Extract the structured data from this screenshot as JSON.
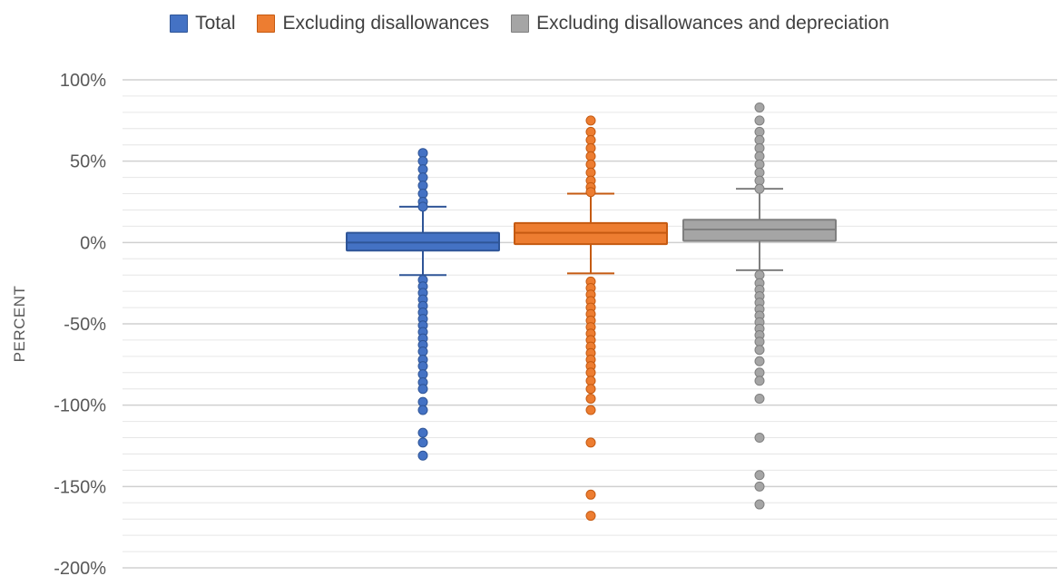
{
  "chart_data": {
    "type": "box",
    "ylabel": "PERCENT",
    "ylim": [
      -200,
      100
    ],
    "yticks": [
      100,
      50,
      0,
      -50,
      -100,
      -150,
      -200
    ],
    "ytick_labels": [
      "100%",
      "50%",
      "0%",
      "-50%",
      "-100%",
      "-150%",
      "-200%"
    ],
    "minor_gridline_step": 10,
    "major_gridline_step": 50,
    "legend_position": "top-center",
    "series": [
      {
        "name": "Total",
        "color": "#4472C4",
        "edge_color": "#2F5597",
        "q1": -5,
        "median": 0,
        "q3": 6,
        "whisker_low": -20,
        "whisker_high": 22,
        "outliers": [
          55,
          50,
          45,
          40,
          35,
          30,
          25,
          22,
          -23,
          -27,
          -31,
          -35,
          -39,
          -43,
          -47,
          -51,
          -55,
          -59,
          -63,
          -67,
          -72,
          -76,
          -81,
          -86,
          -90,
          -98,
          -103,
          -117,
          -123,
          -131
        ]
      },
      {
        "name": "Excluding disallowances",
        "color": "#ED7D31",
        "edge_color": "#C55A11",
        "q1": -1,
        "median": 6,
        "q3": 12,
        "whisker_low": -19,
        "whisker_high": 30,
        "outliers": [
          75,
          68,
          63,
          58,
          53,
          48,
          43,
          38,
          34,
          31,
          -24,
          -28,
          -32,
          -36,
          -40,
          -44,
          -48,
          -52,
          -56,
          -60,
          -64,
          -68,
          -72,
          -76,
          -80,
          -85,
          -90,
          -96,
          -103,
          -123,
          -155,
          -168
        ]
      },
      {
        "name": "Excluding disallowances and depreciation",
        "color": "#A5A5A5",
        "edge_color": "#7F7F7F",
        "q1": 1,
        "median": 8,
        "q3": 14,
        "whisker_low": -17,
        "whisker_high": 33,
        "outliers": [
          83,
          75,
          68,
          63,
          58,
          53,
          48,
          43,
          38,
          33,
          -20,
          -25,
          -29,
          -33,
          -37,
          -41,
          -45,
          -49,
          -53,
          -57,
          -61,
          -66,
          -73,
          -80,
          -85,
          -96,
          -120,
          -143,
          -150,
          -161
        ]
      }
    ]
  }
}
